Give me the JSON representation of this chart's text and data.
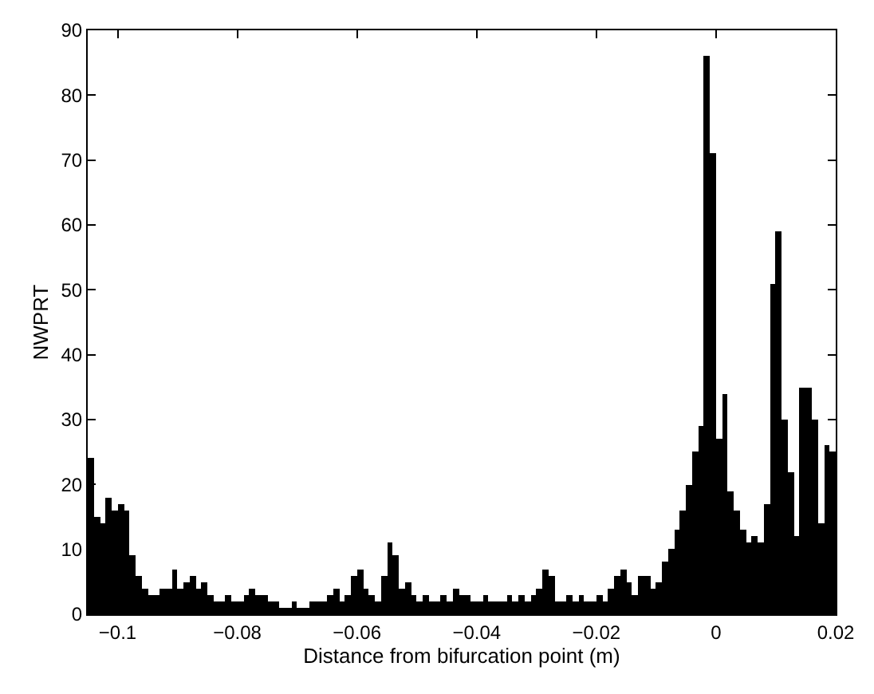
{
  "chart_data": {
    "type": "histogram",
    "xlabel": "Distance from bifurcation point (m)",
    "ylabel": "NWPRT",
    "color": "#000000",
    "bins": [
      -0.105,
      -0.104,
      -0.103,
      -0.102,
      -0.101,
      -0.1,
      -0.099,
      -0.098,
      -0.097,
      -0.096,
      -0.095,
      -0.094,
      -0.093,
      -0.092,
      -0.091,
      -0.09,
      -0.089,
      -0.088,
      -0.087,
      -0.086,
      -0.085,
      -0.084,
      -0.083,
      -0.082,
      -0.081,
      -0.08,
      -0.079,
      -0.078,
      -0.077,
      -0.076,
      -0.075,
      -0.074,
      -0.073,
      -0.072,
      -0.071,
      -0.07,
      -0.069,
      -0.068,
      -0.067,
      -0.066,
      -0.065,
      -0.064,
      -0.063,
      -0.062,
      -0.061,
      -0.06,
      -0.059,
      -0.058,
      -0.057,
      -0.056,
      -0.055,
      -0.054,
      -0.053,
      -0.052,
      -0.051,
      -0.05,
      -0.049,
      -0.048,
      -0.047,
      -0.046,
      -0.045,
      -0.044,
      -0.043,
      -0.042,
      -0.041,
      -0.04,
      -0.039,
      -0.038,
      -0.037,
      -0.036,
      -0.035,
      -0.034,
      -0.033,
      -0.032,
      -0.031,
      -0.03,
      -0.029,
      -0.028,
      -0.027,
      -0.026,
      -0.025,
      -0.024,
      -0.023,
      -0.022,
      -0.021,
      -0.02,
      -0.019,
      -0.018,
      -0.017,
      -0.016,
      -0.015,
      -0.014,
      -0.013,
      -0.012,
      -0.011,
      -0.01,
      -0.009,
      -0.008,
      -0.007,
      -0.006,
      -0.005,
      -0.004,
      -0.003,
      -0.002,
      -0.001,
      0.0,
      0.001,
      0.002,
      0.003,
      0.004,
      0.005,
      0.006,
      0.007,
      0.008,
      0.009,
      0.01,
      0.011,
      0.012,
      0.013,
      0.014,
      0.015,
      0.016,
      0.017,
      0.018,
      0.019,
      0.02
    ],
    "values": [
      24,
      15,
      14,
      18,
      16,
      17,
      16,
      9,
      6,
      4,
      3,
      3,
      4,
      4,
      7,
      4,
      5,
      6,
      4,
      5,
      3,
      2,
      2,
      3,
      2,
      2,
      3,
      4,
      3,
      3,
      2,
      2,
      1,
      1,
      2,
      1,
      1,
      2,
      2,
      2,
      3,
      4,
      2,
      3,
      6,
      7,
      4,
      3,
      2,
      6,
      11,
      9,
      4,
      5,
      3,
      2,
      3,
      2,
      2,
      3,
      2,
      4,
      3,
      3,
      2,
      2,
      3,
      2,
      2,
      2,
      3,
      2,
      3,
      2,
      3,
      4,
      7,
      6,
      2,
      2,
      3,
      2,
      3,
      2,
      2,
      3,
      2,
      4,
      6,
      7,
      5,
      3,
      6,
      6,
      4,
      5,
      8,
      10,
      13,
      16,
      20,
      25,
      29,
      86,
      71,
      27,
      34,
      19,
      16,
      13,
      11,
      12,
      11,
      17,
      51,
      59,
      30,
      22,
      12,
      35,
      35,
      30,
      14,
      26,
      25
    ],
    "xlim": [
      -0.105,
      0.02
    ],
    "xticks": [
      {
        "value": -0.1,
        "label": "−0.1"
      },
      {
        "value": -0.08,
        "label": "−0.08"
      },
      {
        "value": -0.06,
        "label": "−0.06"
      },
      {
        "value": -0.04,
        "label": "−0.04"
      },
      {
        "value": -0.02,
        "label": "−0.02"
      },
      0,
      0.02
    ],
    "ylim": [
      0,
      90
    ],
    "yticks": [
      0,
      10,
      20,
      30,
      40,
      50,
      60,
      70,
      80,
      90
    ]
  }
}
